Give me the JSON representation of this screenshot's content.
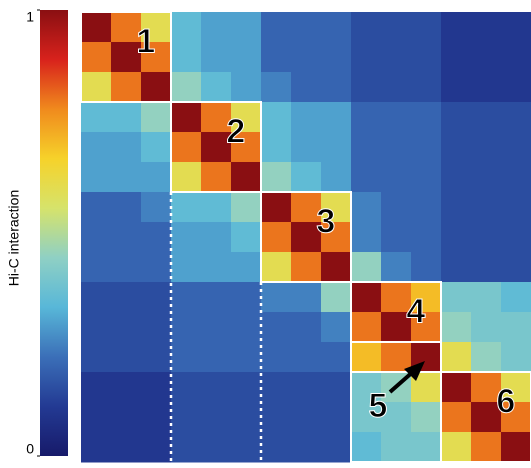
{
  "chart_data": {
    "type": "heatmap",
    "colorbar_label": "Hi-C interaction",
    "zlim": [
      0,
      1
    ],
    "zticks": [
      1,
      0
    ],
    "colorscale": [
      "#171a6a",
      "#233a93",
      "#3b6fb8",
      "#58b7d8",
      "#8fd0c4",
      "#d6e36b",
      "#f6d22a",
      "#f08a1d",
      "#d8221c",
      "#8a0f12"
    ],
    "matrix": [
      [
        1,
        0.8,
        0.6,
        0.35,
        0.3,
        0.3,
        0.2,
        0.2,
        0.2,
        0.15,
        0.15,
        0.15,
        0.1,
        0.1,
        0.1
      ],
      [
        0.8,
        1,
        0.8,
        0.35,
        0.3,
        0.3,
        0.2,
        0.2,
        0.2,
        0.15,
        0.15,
        0.15,
        0.1,
        0.1,
        0.1
      ],
      [
        0.6,
        0.8,
        1,
        0.45,
        0.35,
        0.3,
        0.25,
        0.2,
        0.2,
        0.15,
        0.15,
        0.15,
        0.1,
        0.1,
        0.1
      ],
      [
        0.35,
        0.35,
        0.45,
        1,
        0.8,
        0.6,
        0.35,
        0.3,
        0.3,
        0.2,
        0.2,
        0.2,
        0.15,
        0.15,
        0.15
      ],
      [
        0.3,
        0.3,
        0.35,
        0.8,
        1,
        0.8,
        0.35,
        0.3,
        0.3,
        0.2,
        0.2,
        0.2,
        0.15,
        0.15,
        0.15
      ],
      [
        0.3,
        0.3,
        0.3,
        0.6,
        0.8,
        1,
        0.45,
        0.35,
        0.3,
        0.2,
        0.2,
        0.2,
        0.15,
        0.15,
        0.15
      ],
      [
        0.2,
        0.2,
        0.25,
        0.35,
        0.35,
        0.45,
        1,
        0.8,
        0.6,
        0.25,
        0.2,
        0.2,
        0.15,
        0.15,
        0.15
      ],
      [
        0.2,
        0.2,
        0.2,
        0.3,
        0.3,
        0.35,
        0.8,
        1,
        0.8,
        0.25,
        0.2,
        0.2,
        0.15,
        0.15,
        0.15
      ],
      [
        0.2,
        0.2,
        0.2,
        0.3,
        0.3,
        0.3,
        0.6,
        0.8,
        1,
        0.45,
        0.25,
        0.2,
        0.15,
        0.15,
        0.15
      ],
      [
        0.15,
        0.15,
        0.15,
        0.2,
        0.2,
        0.2,
        0.25,
        0.25,
        0.45,
        1,
        0.8,
        0.7,
        0.4,
        0.4,
        0.35
      ],
      [
        0.15,
        0.15,
        0.15,
        0.2,
        0.2,
        0.2,
        0.2,
        0.2,
        0.25,
        0.8,
        1,
        0.8,
        0.45,
        0.4,
        0.4
      ],
      [
        0.15,
        0.15,
        0.15,
        0.2,
        0.2,
        0.2,
        0.2,
        0.2,
        0.2,
        0.7,
        0.8,
        1,
        0.6,
        0.45,
        0.4
      ],
      [
        0.1,
        0.1,
        0.1,
        0.15,
        0.15,
        0.15,
        0.15,
        0.15,
        0.15,
        0.4,
        0.45,
        0.6,
        1,
        0.8,
        0.6
      ],
      [
        0.1,
        0.1,
        0.1,
        0.15,
        0.15,
        0.15,
        0.15,
        0.15,
        0.15,
        0.4,
        0.4,
        0.45,
        0.8,
        1,
        0.8
      ],
      [
        0.1,
        0.1,
        0.1,
        0.15,
        0.15,
        0.15,
        0.15,
        0.15,
        0.15,
        0.35,
        0.4,
        0.4,
        0.6,
        0.8,
        1
      ]
    ],
    "domains": [
      {
        "label": "1",
        "x": [
          0,
          3
        ],
        "y": [
          0,
          3
        ]
      },
      {
        "label": "2",
        "x": [
          3,
          6
        ],
        "y": [
          3,
          6
        ],
        "guide": true
      },
      {
        "label": "3",
        "x": [
          6,
          9
        ],
        "y": [
          6,
          9
        ],
        "guide": true
      },
      {
        "label": "4",
        "x": [
          9,
          12
        ],
        "y": [
          9,
          12
        ]
      },
      {
        "label": "5",
        "x": [
          9,
          12
        ],
        "y": [
          11,
          15
        ]
      },
      {
        "label": "6",
        "x": [
          12,
          15
        ],
        "y": [
          12,
          15
        ]
      }
    ]
  }
}
